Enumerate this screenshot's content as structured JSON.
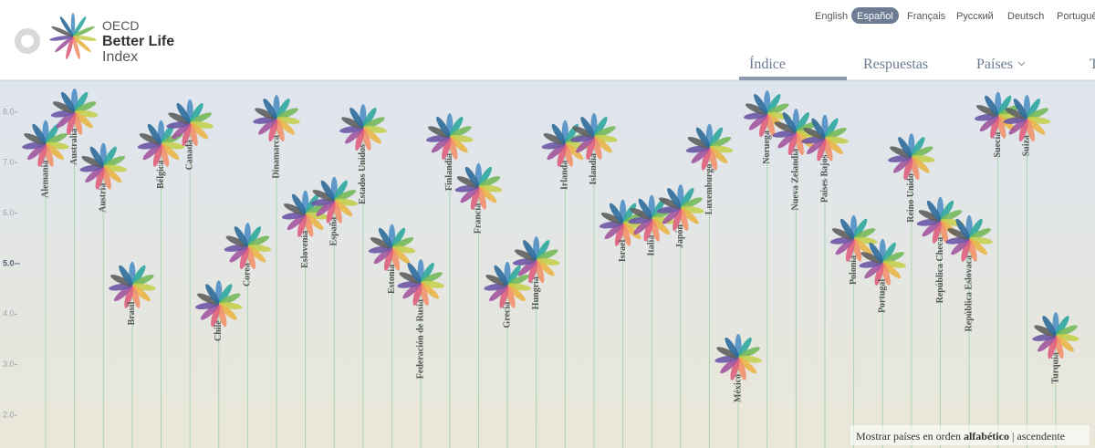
{
  "header": {
    "logo": {
      "line1": "OECD",
      "line2": "Better Life",
      "line3": "Index"
    },
    "languages": [
      "English",
      "Español",
      "Français",
      "Русский",
      "Deutsch",
      "Portuguê"
    ],
    "selected_language": 1,
    "nav": [
      "Índice",
      "Respuestas",
      "Países",
      "T"
    ],
    "selected_nav": 0
  },
  "chart_data": {
    "type": "flower",
    "categories": [
      "Alemania",
      "Australia",
      "Austria",
      "Brasil",
      "Bélgica",
      "Canadá",
      "Chile",
      "Corea",
      "Dinamarca",
      "Eslovenia",
      "España",
      "Estados Unidos",
      "Estonia",
      "Federación de Rusia",
      "Finlandia",
      "Francia",
      "Grecia",
      "Hungría",
      "Irlanda",
      "Islandia",
      "Israel",
      "Italia",
      "Japón",
      "Luxemburgo",
      "México",
      "Noruega",
      "Nueva Zelandia",
      "Países Bajos",
      "Polonia",
      "Portugal",
      "Reino Unido",
      "República Checa",
      "República Eslovaca",
      "Suecia",
      "Suiza",
      "Turquía"
    ],
    "values": [
      7.37,
      8.0,
      6.92,
      4.57,
      7.37,
      7.78,
      4.2,
      5.34,
      7.87,
      5.98,
      6.25,
      7.69,
      5.31,
      4.62,
      7.51,
      6.52,
      4.57,
      5.07,
      7.37,
      7.51,
      5.8,
      5.89,
      6.1,
      7.3,
      3.14,
      7.96,
      7.6,
      7.48,
      5.49,
      5.02,
      7.11,
      5.85,
      5.49,
      7.93,
      7.87,
      3.57
    ],
    "ylim": [
      1.35,
      8.63
    ],
    "yticks": [
      {
        "value": 2,
        "label": "2.0"
      },
      {
        "value": 3,
        "label": "3.0"
      },
      {
        "value": 4,
        "label": "4.0"
      },
      {
        "value": 5,
        "label": "5.0"
      },
      {
        "value": 6,
        "label": "6.0"
      },
      {
        "value": 7,
        "label": "7.0"
      },
      {
        "value": 8,
        "label": "8.0"
      }
    ],
    "petal_colors": [
      "#4f8fc4",
      "#2fa79f",
      "#74b85a",
      "#c5cf4f",
      "#e9b548",
      "#f1916b",
      "#df5f7c",
      "#a2579f",
      "#6c57a5",
      "#5f5f5f",
      "#2f6b9a"
    ],
    "stem_color": "#a9d4b0"
  },
  "footer": {
    "prefix": "Mostrar países en orden",
    "order": "alfabético",
    "separator": "|",
    "direction": "ascendente"
  }
}
